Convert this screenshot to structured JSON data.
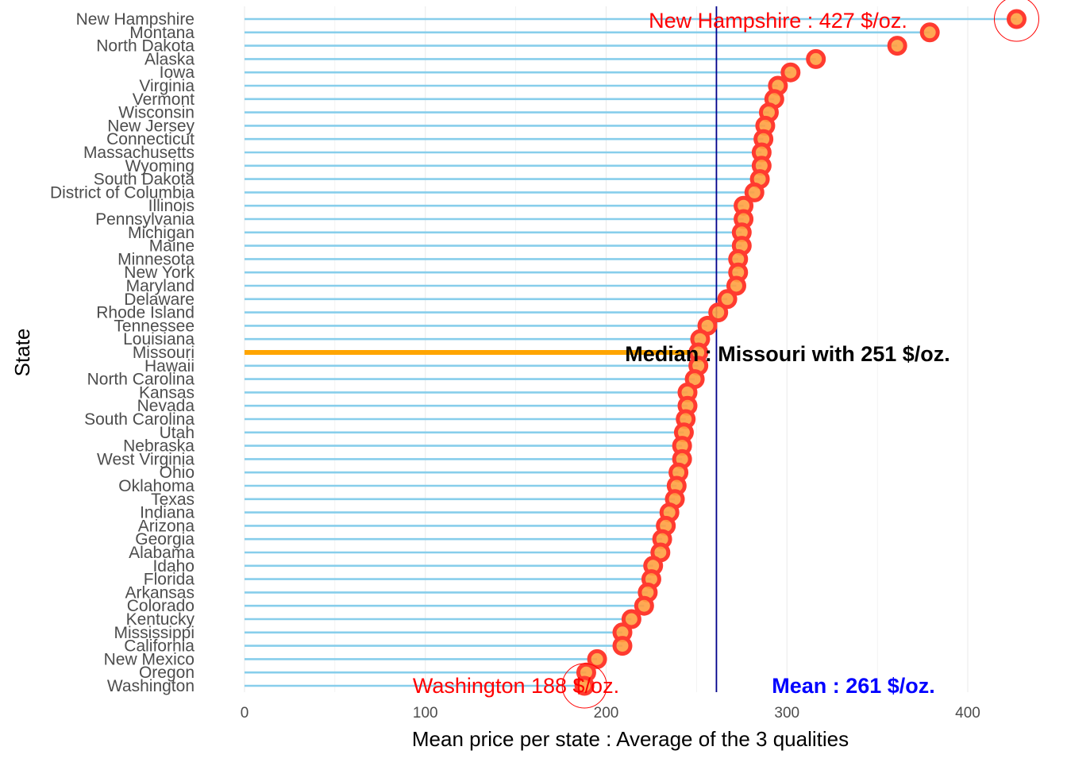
{
  "chart_data": {
    "type": "lollipop",
    "xlabel": "Mean price per state : Average of the 3 qualities",
    "ylabel": "State",
    "xlim": [
      0,
      435
    ],
    "xticks": [
      0,
      100,
      200,
      300,
      400
    ],
    "grid": true,
    "categories": [
      "New Hampshire",
      "Montana",
      "North Dakota",
      "Alaska",
      "Iowa",
      "Virginia",
      "Vermont",
      "Wisconsin",
      "New Jersey",
      "Connecticut",
      "Massachusetts",
      "Wyoming",
      "South Dakota",
      "District of Columbia",
      "Illinois",
      "Pennsylvania",
      "Michigan",
      "Maine",
      "Minnesota",
      "New York",
      "Maryland",
      "Delaware",
      "Rhode Island",
      "Tennessee",
      "Louisiana",
      "Missouri",
      "Hawaii",
      "North Carolina",
      "Kansas",
      "Nevada",
      "South Carolina",
      "Utah",
      "Nebraska",
      "West Virginia",
      "Ohio",
      "Oklahoma",
      "Texas",
      "Indiana",
      "Arizona",
      "Georgia",
      "Alabama",
      "Idaho",
      "Florida",
      "Arkansas",
      "Colorado",
      "Kentucky",
      "Mississippi",
      "California",
      "New Mexico",
      "Oregon",
      "Washington"
    ],
    "values": [
      427,
      379,
      361,
      316,
      302,
      295,
      293,
      290,
      288,
      287,
      286,
      286,
      285,
      282,
      276,
      276,
      275,
      275,
      273,
      273,
      272,
      267,
      262,
      256,
      252,
      251,
      251,
      249,
      245,
      245,
      244,
      243,
      242,
      242,
      240,
      239,
      238,
      235,
      233,
      231,
      230,
      226,
      225,
      223,
      221,
      214,
      209,
      209,
      195,
      189,
      188
    ],
    "highlight": {
      "category": "Missouri",
      "color": "#FFA500"
    },
    "colors": {
      "stem": "#87CEEB",
      "point_outline": "#FF3B30",
      "point_fill": "#FFA040",
      "mean_line": "#00008B",
      "max": "#FF0000",
      "min": "#FF0000",
      "mean": "#0000FF",
      "median": "#000000"
    },
    "mean": 261,
    "annotations": {
      "max": "New Hampshire : 427 $/oz.",
      "min": "Washington 188 $/oz.",
      "median": "Median : Missouri with 251 $/oz.",
      "mean": "Mean : 261 $/oz."
    }
  }
}
